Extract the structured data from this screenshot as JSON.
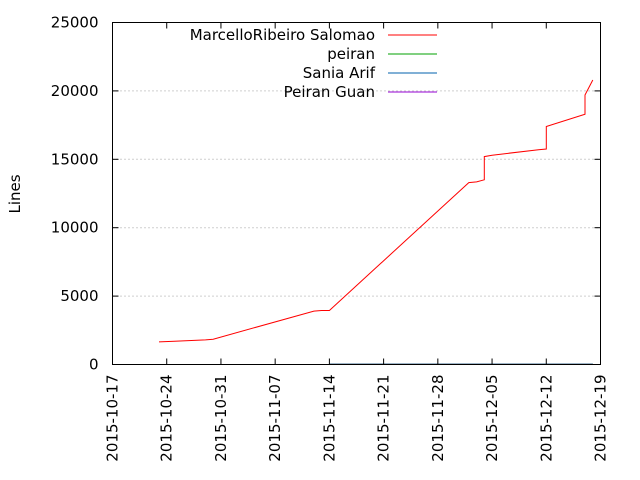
{
  "chart_data": {
    "type": "line",
    "title": "",
    "xlabel": "",
    "ylabel": "Lines",
    "xlim": [
      "2015-10-17",
      "2015-12-19"
    ],
    "ylim": [
      0,
      25000
    ],
    "x_ticks": [
      "2015-10-17",
      "2015-10-24",
      "2015-10-31",
      "2015-11-07",
      "2015-11-14",
      "2015-11-21",
      "2015-11-28",
      "2015-12-05",
      "2015-12-12",
      "2015-12-19"
    ],
    "y_ticks": [
      0,
      5000,
      10000,
      15000,
      20000,
      25000
    ],
    "y_tick_labels": [
      "0",
      "5000",
      "10000",
      "15000",
      "20000",
      "25000"
    ],
    "grid": true,
    "legend_position": "top-right",
    "series": [
      {
        "name": "MarcelloRibeiro Salomao",
        "color": "#ff0000",
        "x": [
          "2015-10-23",
          "2015-10-25",
          "2015-10-29",
          "2015-10-30",
          "2015-11-12",
          "2015-11-13",
          "2015-11-14",
          "2015-12-02",
          "2015-12-03",
          "2015-12-04",
          "2015-12-04",
          "2015-12-05",
          "2015-12-11",
          "2015-12-12",
          "2015-12-12",
          "2015-12-17",
          "2015-12-17",
          "2015-12-18"
        ],
        "y": [
          1650,
          1700,
          1800,
          1850,
          3900,
          3950,
          3950,
          13300,
          13350,
          13500,
          15200,
          15300,
          15700,
          15750,
          17400,
          18300,
          19700,
          20800
        ]
      },
      {
        "name": "peiran",
        "color": "#00a000",
        "x": [
          "2015-11-14",
          "2015-12-18"
        ],
        "y": [
          30,
          30
        ]
      },
      {
        "name": "Sania Arif",
        "color": "#0060ad",
        "x": [
          "2015-11-14",
          "2015-12-18"
        ],
        "y": [
          20,
          20
        ]
      },
      {
        "name": "Peiran Guan",
        "color": "#9400d3",
        "x": [
          "2015-11-14",
          "2015-12-18"
        ],
        "y": [
          10,
          10
        ]
      }
    ]
  }
}
